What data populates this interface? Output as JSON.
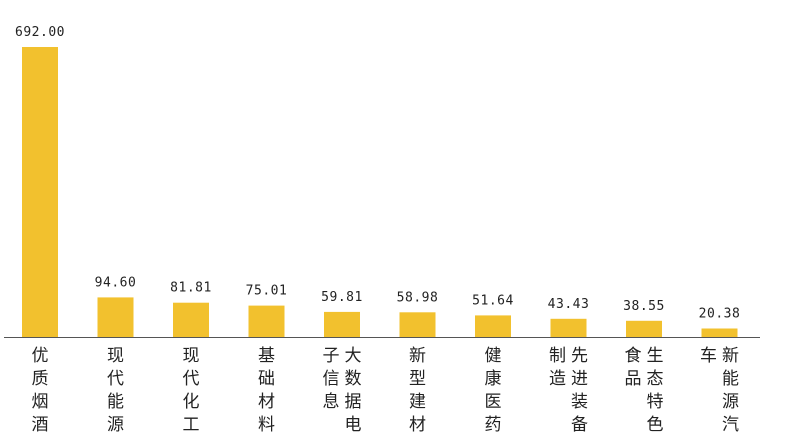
{
  "chart_data": {
    "type": "bar",
    "categories": [
      "优质烟酒",
      "现代能源",
      "现代化工",
      "基础材料",
      "大数据电子信息",
      "新型建材",
      "健康医药",
      "先进装备制造",
      "生态特色食品",
      "新能源汽车"
    ],
    "category_lines": [
      [
        "优质烟酒"
      ],
      [
        "现代能源"
      ],
      [
        "现代化工"
      ],
      [
        "基础材料"
      ],
      [
        "大数据电",
        "子信息"
      ],
      [
        "新型建材"
      ],
      [
        "健康医药"
      ],
      [
        "先进装备",
        "制造"
      ],
      [
        "生态特色",
        "食品"
      ],
      [
        "新能源汽",
        "车"
      ]
    ],
    "values": [
      692.0,
      94.6,
      81.81,
      75.01,
      59.81,
      58.98,
      51.64,
      43.43,
      38.55,
      20.38
    ],
    "value_labels": [
      "692.00",
      "94.60",
      "81.81",
      "75.01",
      "59.81",
      "58.98",
      "51.64",
      "43.43",
      "38.55",
      "20.38"
    ],
    "ylim": [
      0,
      692
    ],
    "grid": false,
    "legend": "none",
    "bar_color": "#F2C12E",
    "axis_color": "#555555"
  }
}
